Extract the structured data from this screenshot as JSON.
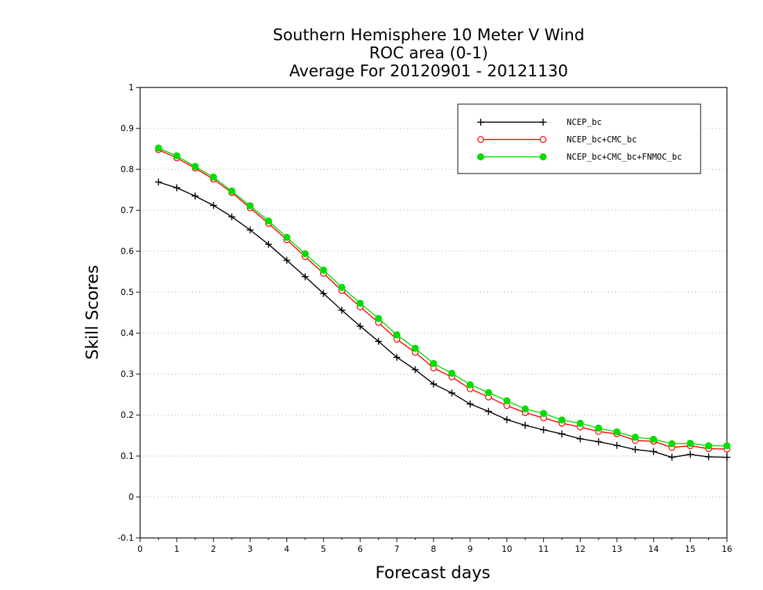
{
  "chart_data": {
    "type": "line",
    "title_lines": [
      "Southern Hemisphere 10 Meter V Wind",
      "ROC area (0-1)",
      "Average For 20120901 - 20121130"
    ],
    "xlabel": "Forecast days",
    "ylabel": "Skill Scores",
    "xlim": [
      0,
      16
    ],
    "ylim": [
      -0.1,
      1
    ],
    "x_ticks": [
      "0",
      "1",
      "2",
      "3",
      "4",
      "5",
      "6",
      "7",
      "8",
      "9",
      "10",
      "11",
      "12",
      "13",
      "14",
      "15",
      "16"
    ],
    "y_ticks": [
      "-0.1",
      "0",
      "0.1",
      "0.2",
      "0.3",
      "0.4",
      "0.5",
      "0.6",
      "0.7",
      "0.8",
      "0.9",
      "1"
    ],
    "grid": "horizontal dotted",
    "legend_position": "top-right",
    "x": [
      0.5,
      1,
      1.5,
      2,
      2.5,
      3,
      3.5,
      4,
      4.5,
      5,
      5.5,
      6,
      6.5,
      7,
      7.5,
      8,
      8.5,
      9,
      9.5,
      10,
      10.5,
      11,
      11.5,
      12,
      12.5,
      13,
      13.5,
      14,
      14.5,
      15,
      15.5,
      16
    ],
    "series": [
      {
        "name": "NCEP_bc",
        "color": "#000000",
        "marker": "plus",
        "values": [
          0.769,
          0.755,
          0.735,
          0.712,
          0.684,
          0.652,
          0.617,
          0.578,
          0.538,
          0.497,
          0.456,
          0.417,
          0.38,
          0.341,
          0.311,
          0.276,
          0.254,
          0.227,
          0.209,
          0.189,
          0.175,
          0.164,
          0.154,
          0.142,
          0.135,
          0.126,
          0.116,
          0.111,
          0.097,
          0.104,
          0.098,
          0.097
        ]
      },
      {
        "name": "NCEP_bc+CMC_bc",
        "color": "#ff0000",
        "marker": "open-circle",
        "values": [
          0.848,
          0.828,
          0.803,
          0.776,
          0.743,
          0.706,
          0.668,
          0.628,
          0.587,
          0.546,
          0.504,
          0.464,
          0.426,
          0.385,
          0.353,
          0.315,
          0.293,
          0.264,
          0.244,
          0.223,
          0.206,
          0.193,
          0.18,
          0.171,
          0.16,
          0.154,
          0.138,
          0.136,
          0.121,
          0.125,
          0.118,
          0.117
        ]
      },
      {
        "name": "NCEP_bc+CMC_bc+FNMOC_bc",
        "color": "#00dd00",
        "marker": "filled-circle",
        "values": [
          0.852,
          0.833,
          0.807,
          0.781,
          0.747,
          0.711,
          0.674,
          0.634,
          0.594,
          0.554,
          0.512,
          0.473,
          0.436,
          0.396,
          0.363,
          0.326,
          0.302,
          0.274,
          0.255,
          0.235,
          0.215,
          0.204,
          0.188,
          0.18,
          0.168,
          0.159,
          0.146,
          0.141,
          0.13,
          0.131,
          0.125,
          0.125
        ]
      }
    ]
  }
}
